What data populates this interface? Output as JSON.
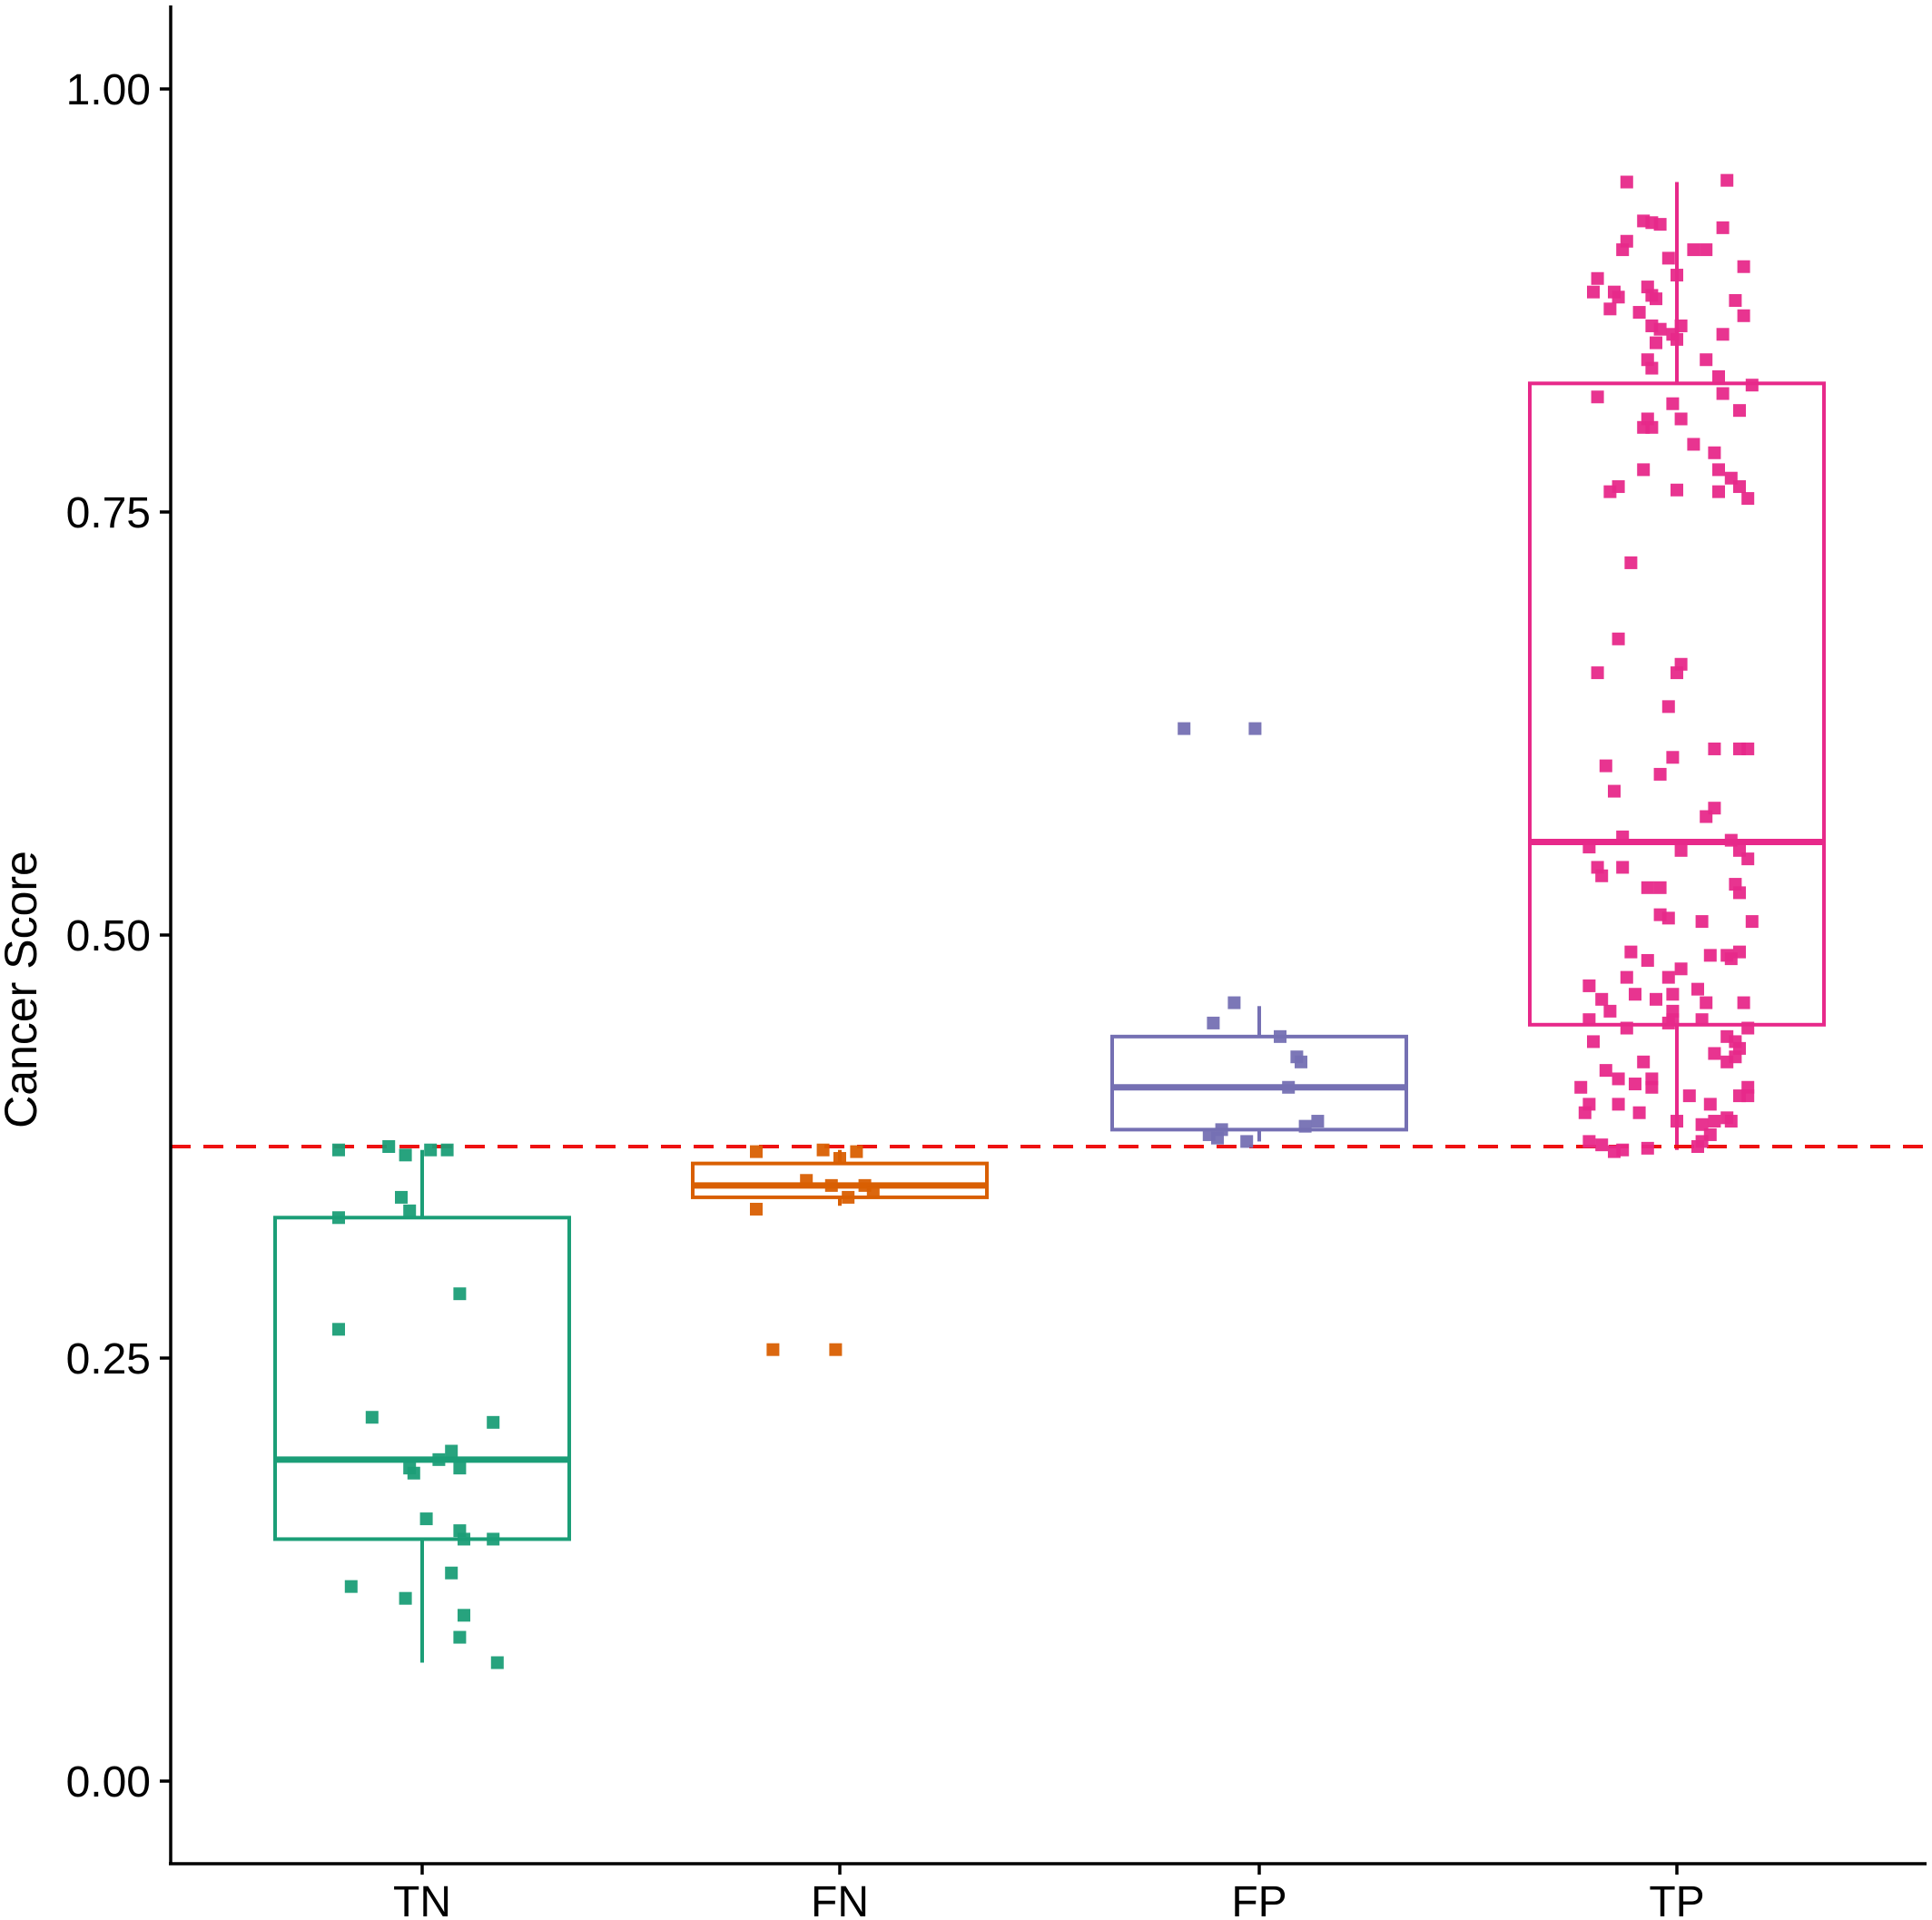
{
  "chart_data": {
    "type": "box",
    "title": "",
    "xlabel": "",
    "ylabel": "Cancer Score",
    "ylim": [
      -0.05,
      1.05
    ],
    "yticks": [
      0.0,
      0.25,
      0.5,
      0.75,
      1.0
    ],
    "ytick_labels": [
      "0.00",
      "0.25",
      "0.50",
      "0.75",
      "1.00"
    ],
    "categories": [
      "TN",
      "FN",
      "FP",
      "TP"
    ],
    "threshold": {
      "value": 0.375,
      "color": "#ee1111",
      "style": "dashed"
    },
    "grid": false,
    "legend": "none",
    "groups": [
      {
        "name": "TN",
        "color": "#1b9e77",
        "whisker_low": 0.07,
        "q1": 0.143,
        "median": 0.19,
        "q3": 0.333,
        "whisker_high": 0.373,
        "points": [
          {
            "xj": -0.2,
            "y": 0.373
          },
          {
            "xj": -0.08,
            "y": 0.375
          },
          {
            "xj": -0.04,
            "y": 0.37
          },
          {
            "xj": 0.02,
            "y": 0.373
          },
          {
            "xj": 0.06,
            "y": 0.373
          },
          {
            "xj": -0.05,
            "y": 0.345
          },
          {
            "xj": -0.03,
            "y": 0.337
          },
          {
            "xj": -0.2,
            "y": 0.333
          },
          {
            "xj": 0.09,
            "y": 0.288
          },
          {
            "xj": -0.2,
            "y": 0.267
          },
          {
            "xj": -0.12,
            "y": 0.215
          },
          {
            "xj": 0.17,
            "y": 0.212
          },
          {
            "xj": 0.07,
            "y": 0.195
          },
          {
            "xj": 0.04,
            "y": 0.19
          },
          {
            "xj": -0.03,
            "y": 0.185
          },
          {
            "xj": -0.02,
            "y": 0.182
          },
          {
            "xj": 0.09,
            "y": 0.185
          },
          {
            "xj": 0.01,
            "y": 0.155
          },
          {
            "xj": 0.09,
            "y": 0.148
          },
          {
            "xj": 0.1,
            "y": 0.143
          },
          {
            "xj": 0.17,
            "y": 0.143
          },
          {
            "xj": 0.07,
            "y": 0.123
          },
          {
            "xj": -0.17,
            "y": 0.115
          },
          {
            "xj": -0.04,
            "y": 0.108
          },
          {
            "xj": 0.1,
            "y": 0.098
          },
          {
            "xj": 0.09,
            "y": 0.085
          },
          {
            "xj": 0.18,
            "y": 0.07
          }
        ]
      },
      {
        "name": "FN",
        "color": "#d95f02",
        "whisker_low": 0.34,
        "q1": 0.345,
        "median": 0.352,
        "q3": 0.365,
        "whisker_high": 0.373,
        "points": [
          {
            "xj": -0.2,
            "y": 0.372
          },
          {
            "xj": -0.04,
            "y": 0.373
          },
          {
            "xj": 0.04,
            "y": 0.372
          },
          {
            "xj": 0.0,
            "y": 0.368
          },
          {
            "xj": -0.08,
            "y": 0.355
          },
          {
            "xj": -0.02,
            "y": 0.352
          },
          {
            "xj": 0.06,
            "y": 0.352
          },
          {
            "xj": 0.08,
            "y": 0.348
          },
          {
            "xj": 0.02,
            "y": 0.345
          },
          {
            "xj": -0.2,
            "y": 0.338
          },
          {
            "xj": -0.16,
            "y": 0.255
          },
          {
            "xj": -0.01,
            "y": 0.255
          }
        ]
      },
      {
        "name": "FP",
        "color": "#7570b3",
        "whisker_low": 0.378,
        "q1": 0.385,
        "median": 0.41,
        "q3": 0.44,
        "whisker_high": 0.458,
        "points": [
          {
            "xj": -0.18,
            "y": 0.622
          },
          {
            "xj": -0.01,
            "y": 0.622
          },
          {
            "xj": -0.06,
            "y": 0.46
          },
          {
            "xj": -0.11,
            "y": 0.448
          },
          {
            "xj": 0.05,
            "y": 0.44
          },
          {
            "xj": 0.09,
            "y": 0.428
          },
          {
            "xj": 0.1,
            "y": 0.425
          },
          {
            "xj": 0.07,
            "y": 0.41
          },
          {
            "xj": 0.14,
            "y": 0.39
          },
          {
            "xj": 0.11,
            "y": 0.387
          },
          {
            "xj": -0.09,
            "y": 0.385
          },
          {
            "xj": -0.12,
            "y": 0.382
          },
          {
            "xj": -0.1,
            "y": 0.38
          },
          {
            "xj": -0.03,
            "y": 0.378
          }
        ]
      },
      {
        "name": "TP",
        "color": "#e7298a",
        "whisker_low": 0.373,
        "q1": 0.447,
        "median": 0.555,
        "q3": 0.826,
        "whisker_high": 0.945,
        "points": [
          {
            "xj": -0.12,
            "y": 0.945
          },
          {
            "xj": 0.12,
            "y": 0.946
          },
          {
            "xj": -0.12,
            "y": 0.91
          },
          {
            "xj": -0.13,
            "y": 0.905
          },
          {
            "xj": -0.04,
            "y": 0.92
          },
          {
            "xj": -0.08,
            "y": 0.922
          },
          {
            "xj": -0.06,
            "y": 0.921
          },
          {
            "xj": 0.04,
            "y": 0.905
          },
          {
            "xj": 0.07,
            "y": 0.905
          },
          {
            "xj": 0.11,
            "y": 0.918
          },
          {
            "xj": -0.02,
            "y": 0.9
          },
          {
            "xj": 0.0,
            "y": 0.89
          },
          {
            "xj": 0.16,
            "y": 0.895
          },
          {
            "xj": -0.19,
            "y": 0.888
          },
          {
            "xj": -0.2,
            "y": 0.88
          },
          {
            "xj": -0.15,
            "y": 0.88
          },
          {
            "xj": -0.14,
            "y": 0.877
          },
          {
            "xj": -0.07,
            "y": 0.883
          },
          {
            "xj": -0.06,
            "y": 0.878
          },
          {
            "xj": -0.05,
            "y": 0.876
          },
          {
            "xj": -0.16,
            "y": 0.87
          },
          {
            "xj": -0.09,
            "y": 0.868
          },
          {
            "xj": 0.14,
            "y": 0.875
          },
          {
            "xj": -0.06,
            "y": 0.86
          },
          {
            "xj": -0.04,
            "y": 0.858
          },
          {
            "xj": -0.01,
            "y": 0.855
          },
          {
            "xj": 0.01,
            "y": 0.86
          },
          {
            "xj": 0.16,
            "y": 0.866
          },
          {
            "xj": 0.11,
            "y": 0.855
          },
          {
            "xj": 0.0,
            "y": 0.852
          },
          {
            "xj": -0.05,
            "y": 0.85
          },
          {
            "xj": -0.07,
            "y": 0.84
          },
          {
            "xj": -0.06,
            "y": 0.835
          },
          {
            "xj": 0.07,
            "y": 0.84
          },
          {
            "xj": 0.1,
            "y": 0.83
          },
          {
            "xj": 0.11,
            "y": 0.82
          },
          {
            "xj": 0.18,
            "y": 0.825
          },
          {
            "xj": -0.19,
            "y": 0.818
          },
          {
            "xj": -0.01,
            "y": 0.814
          },
          {
            "xj": -0.07,
            "y": 0.805
          },
          {
            "xj": -0.08,
            "y": 0.8
          },
          {
            "xj": -0.06,
            "y": 0.8
          },
          {
            "xj": 0.01,
            "y": 0.805
          },
          {
            "xj": 0.15,
            "y": 0.81
          },
          {
            "xj": 0.04,
            "y": 0.79
          },
          {
            "xj": 0.09,
            "y": 0.785
          },
          {
            "xj": 0.1,
            "y": 0.775
          },
          {
            "xj": -0.08,
            "y": 0.775
          },
          {
            "xj": -0.14,
            "y": 0.765
          },
          {
            "xj": -0.16,
            "y": 0.762
          },
          {
            "xj": 0.0,
            "y": 0.763
          },
          {
            "xj": 0.1,
            "y": 0.762
          },
          {
            "xj": 0.13,
            "y": 0.77
          },
          {
            "xj": 0.15,
            "y": 0.765
          },
          {
            "xj": 0.17,
            "y": 0.758
          },
          {
            "xj": -0.11,
            "y": 0.72
          },
          {
            "xj": -0.14,
            "y": 0.675
          },
          {
            "xj": -0.19,
            "y": 0.655
          },
          {
            "xj": 0.0,
            "y": 0.655
          },
          {
            "xj": 0.01,
            "y": 0.66
          },
          {
            "xj": -0.02,
            "y": 0.635
          },
          {
            "xj": 0.15,
            "y": 0.61
          },
          {
            "xj": 0.17,
            "y": 0.61
          },
          {
            "xj": 0.09,
            "y": 0.61
          },
          {
            "xj": -0.01,
            "y": 0.605
          },
          {
            "xj": -0.17,
            "y": 0.6
          },
          {
            "xj": -0.04,
            "y": 0.595
          },
          {
            "xj": -0.15,
            "y": 0.585
          },
          {
            "xj": 0.09,
            "y": 0.575
          },
          {
            "xj": 0.07,
            "y": 0.57
          },
          {
            "xj": -0.13,
            "y": 0.558
          },
          {
            "xj": 0.01,
            "y": 0.55
          },
          {
            "xj": -0.21,
            "y": 0.552
          },
          {
            "xj": -0.19,
            "y": 0.54
          },
          {
            "xj": 0.13,
            "y": 0.556
          },
          {
            "xj": 0.15,
            "y": 0.55
          },
          {
            "xj": 0.17,
            "y": 0.545
          },
          {
            "xj": -0.13,
            "y": 0.54
          },
          {
            "xj": -0.18,
            "y": 0.535
          },
          {
            "xj": 0.14,
            "y": 0.53
          },
          {
            "xj": -0.07,
            "y": 0.528
          },
          {
            "xj": -0.04,
            "y": 0.528
          },
          {
            "xj": 0.15,
            "y": 0.525
          },
          {
            "xj": -0.04,
            "y": 0.512
          },
          {
            "xj": 0.06,
            "y": 0.508
          },
          {
            "xj": 0.18,
            "y": 0.508
          },
          {
            "xj": -0.02,
            "y": 0.51
          },
          {
            "xj": -0.11,
            "y": 0.49
          },
          {
            "xj": 0.08,
            "y": 0.488
          },
          {
            "xj": 0.12,
            "y": 0.488
          },
          {
            "xj": 0.15,
            "y": 0.49
          },
          {
            "xj": 0.13,
            "y": 0.486
          },
          {
            "xj": -0.07,
            "y": 0.485
          },
          {
            "xj": -0.21,
            "y": 0.47
          },
          {
            "xj": -0.12,
            "y": 0.475
          },
          {
            "xj": -0.02,
            "y": 0.475
          },
          {
            "xj": 0.01,
            "y": 0.48
          },
          {
            "xj": 0.05,
            "y": 0.468
          },
          {
            "xj": -0.18,
            "y": 0.462
          },
          {
            "xj": -0.1,
            "y": 0.465
          },
          {
            "xj": -0.05,
            "y": 0.462
          },
          {
            "xj": -0.01,
            "y": 0.465
          },
          {
            "xj": 0.07,
            "y": 0.46
          },
          {
            "xj": 0.16,
            "y": 0.46
          },
          {
            "xj": -0.16,
            "y": 0.455
          },
          {
            "xj": -0.01,
            "y": 0.455
          },
          {
            "xj": -0.01,
            "y": 0.45
          },
          {
            "xj": -0.02,
            "y": 0.448
          },
          {
            "xj": -0.21,
            "y": 0.45
          },
          {
            "xj": 0.06,
            "y": 0.45
          },
          {
            "xj": 0.17,
            "y": 0.445
          },
          {
            "xj": -0.12,
            "y": 0.445
          },
          {
            "xj": -0.2,
            "y": 0.437
          },
          {
            "xj": 0.12,
            "y": 0.44
          },
          {
            "xj": 0.14,
            "y": 0.437
          },
          {
            "xj": 0.15,
            "y": 0.433
          },
          {
            "xj": 0.09,
            "y": 0.43
          },
          {
            "xj": -0.08,
            "y": 0.425
          },
          {
            "xj": -0.17,
            "y": 0.42
          },
          {
            "xj": -0.06,
            "y": 0.415
          },
          {
            "xj": -0.14,
            "y": 0.415
          },
          {
            "xj": -0.1,
            "y": 0.412
          },
          {
            "xj": -0.06,
            "y": 0.41
          },
          {
            "xj": 0.12,
            "y": 0.425
          },
          {
            "xj": 0.14,
            "y": 0.428
          },
          {
            "xj": 0.17,
            "y": 0.41
          },
          {
            "xj": -0.23,
            "y": 0.41
          },
          {
            "xj": -0.21,
            "y": 0.4
          },
          {
            "xj": 0.15,
            "y": 0.405
          },
          {
            "xj": 0.17,
            "y": 0.405
          },
          {
            "xj": 0.03,
            "y": 0.405
          },
          {
            "xj": -0.22,
            "y": 0.395
          },
          {
            "xj": -0.14,
            "y": 0.4
          },
          {
            "xj": 0.08,
            "y": 0.4
          },
          {
            "xj": -0.09,
            "y": 0.395
          },
          {
            "xj": -0.21,
            "y": 0.378
          },
          {
            "xj": -0.18,
            "y": 0.376
          },
          {
            "xj": -0.07,
            "y": 0.374
          },
          {
            "xj": 0.06,
            "y": 0.388
          },
          {
            "xj": 0.12,
            "y": 0.392
          },
          {
            "xj": 0.13,
            "y": 0.39
          },
          {
            "xj": 0.09,
            "y": 0.39
          },
          {
            "xj": 0.0,
            "y": 0.39
          },
          {
            "xj": 0.08,
            "y": 0.382
          },
          {
            "xj": 0.05,
            "y": 0.375
          },
          {
            "xj": 0.06,
            "y": 0.378
          },
          {
            "xj": -0.13,
            "y": 0.373
          },
          {
            "xj": -0.15,
            "y": 0.372
          }
        ]
      }
    ]
  }
}
